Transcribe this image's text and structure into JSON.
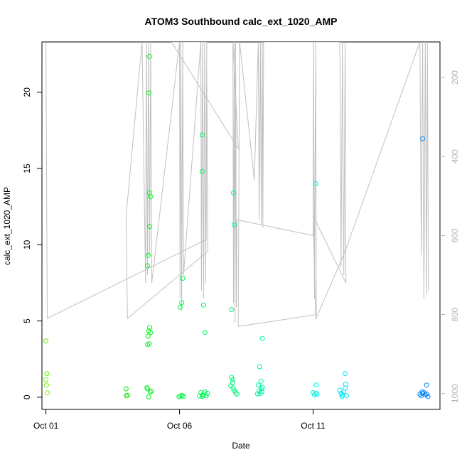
{
  "chart_data": {
    "type": "scatter",
    "title": "ATOM3 Southbound calc_ext_1020_AMP",
    "xlabel": "Date",
    "ylabel": "calc_ext_1020_AMP",
    "xlim": [
      -0.15,
      14.75
    ],
    "ylim": [
      -0.8,
      23.3
    ],
    "x_ticks": [
      {
        "value": 0,
        "label": "Oct 01"
      },
      {
        "value": 5,
        "label": "Oct 06"
      },
      {
        "value": 10,
        "label": "Oct 11"
      }
    ],
    "y_ticks": [
      0,
      5,
      10,
      15,
      20
    ],
    "right_axis": {
      "ylim": [
        1040,
        110
      ],
      "ticks": [
        200,
        400,
        600,
        800,
        1000
      ],
      "color": "#b3b3b3"
    },
    "points": [
      {
        "x": 0.0,
        "y": 3.68
      },
      {
        "x": 0.03,
        "y": 1.55
      },
      {
        "x": 0.0,
        "y": 1.15
      },
      {
        "x": 0.02,
        "y": 0.8
      },
      {
        "x": 0.05,
        "y": 0.28
      },
      {
        "x": 3.0,
        "y": 0.55
      },
      {
        "x": 3.0,
        "y": 0.1
      },
      {
        "x": 3.05,
        "y": 0.12
      },
      {
        "x": 3.78,
        "y": 0.62
      },
      {
        "x": 3.8,
        "y": 0.55
      },
      {
        "x": 3.85,
        "y": 0.02
      },
      {
        "x": 3.9,
        "y": 0.35
      },
      {
        "x": 3.95,
        "y": 0.4
      },
      {
        "x": 3.8,
        "y": 3.45
      },
      {
        "x": 3.87,
        "y": 3.5
      },
      {
        "x": 3.82,
        "y": 4.0
      },
      {
        "x": 3.85,
        "y": 4.35
      },
      {
        "x": 3.88,
        "y": 4.58
      },
      {
        "x": 3.92,
        "y": 4.25
      },
      {
        "x": 3.8,
        "y": 8.62
      },
      {
        "x": 3.83,
        "y": 9.3
      },
      {
        "x": 3.88,
        "y": 11.2
      },
      {
        "x": 3.87,
        "y": 13.4
      },
      {
        "x": 3.92,
        "y": 13.15
      },
      {
        "x": 3.85,
        "y": 19.95
      },
      {
        "x": 3.87,
        "y": 22.35
      },
      {
        "x": 5.02,
        "y": 5.9
      },
      {
        "x": 5.08,
        "y": 6.2
      },
      {
        "x": 5.12,
        "y": 7.8
      },
      {
        "x": 4.98,
        "y": 0.03
      },
      {
        "x": 5.05,
        "y": 0.08
      },
      {
        "x": 5.1,
        "y": 0.12
      },
      {
        "x": 5.15,
        "y": 0.05
      },
      {
        "x": 5.85,
        "y": 17.2
      },
      {
        "x": 5.85,
        "y": 14.8
      },
      {
        "x": 5.9,
        "y": 6.05
      },
      {
        "x": 5.95,
        "y": 4.25
      },
      {
        "x": 5.8,
        "y": 0.3
      },
      {
        "x": 5.85,
        "y": 0.05
      },
      {
        "x": 5.9,
        "y": 0.2
      },
      {
        "x": 5.95,
        "y": 0.35
      },
      {
        "x": 6.0,
        "y": 0.1
      },
      {
        "x": 6.05,
        "y": 0.25
      },
      {
        "x": 5.88,
        "y": 0.12
      },
      {
        "x": 5.75,
        "y": 0.08
      },
      {
        "x": 7.02,
        "y": 13.4
      },
      {
        "x": 7.05,
        "y": 11.3
      },
      {
        "x": 6.95,
        "y": 5.75
      },
      {
        "x": 6.95,
        "y": 1.3
      },
      {
        "x": 7.0,
        "y": 1.15
      },
      {
        "x": 6.98,
        "y": 0.95
      },
      {
        "x": 6.92,
        "y": 0.75
      },
      {
        "x": 7.0,
        "y": 0.6
      },
      {
        "x": 7.05,
        "y": 0.45
      },
      {
        "x": 7.1,
        "y": 0.3
      },
      {
        "x": 7.15,
        "y": 0.2
      },
      {
        "x": 8.1,
        "y": 3.85
      },
      {
        "x": 8.0,
        "y": 2.0
      },
      {
        "x": 8.05,
        "y": 1.05
      },
      {
        "x": 7.95,
        "y": 0.8
      },
      {
        "x": 8.05,
        "y": 0.55
      },
      {
        "x": 8.1,
        "y": 0.65
      },
      {
        "x": 7.98,
        "y": 0.4
      },
      {
        "x": 8.02,
        "y": 0.25
      },
      {
        "x": 8.08,
        "y": 0.35
      },
      {
        "x": 7.92,
        "y": 0.22
      },
      {
        "x": 10.1,
        "y": 14.0
      },
      {
        "x": 10.12,
        "y": 0.8
      },
      {
        "x": 10.0,
        "y": 0.3
      },
      {
        "x": 10.05,
        "y": 0.15
      },
      {
        "x": 10.1,
        "y": 0.25
      },
      {
        "x": 10.15,
        "y": 0.2
      },
      {
        "x": 11.0,
        "y": 0.45
      },
      {
        "x": 11.05,
        "y": 0.25
      },
      {
        "x": 11.1,
        "y": 0.15
      },
      {
        "x": 11.15,
        "y": 0.35
      },
      {
        "x": 11.2,
        "y": 0.6
      },
      {
        "x": 11.22,
        "y": 0.85
      },
      {
        "x": 11.2,
        "y": 1.55
      },
      {
        "x": 11.25,
        "y": 0.1
      },
      {
        "x": 11.08,
        "y": 0.05
      },
      {
        "x": 14.1,
        "y": 16.95
      },
      {
        "x": 14.25,
        "y": 0.8
      },
      {
        "x": 14.0,
        "y": 0.2
      },
      {
        "x": 14.05,
        "y": 0.1
      },
      {
        "x": 14.1,
        "y": 0.25
      },
      {
        "x": 14.15,
        "y": 0.3
      },
      {
        "x": 14.2,
        "y": 0.15
      },
      {
        "x": 14.25,
        "y": 0.2
      },
      {
        "x": 14.3,
        "y": 0.05
      },
      {
        "x": 14.08,
        "y": 0.35
      }
    ],
    "line_series": {
      "color": "#c0c0c0",
      "points": [
        [
          0.0,
          110
        ],
        [
          0.05,
          810
        ],
        [
          6.0,
          610
        ],
        [
          6.02,
          180
        ],
        [
          6.06,
          640
        ],
        [
          3.05,
          810
        ],
        [
          3.0,
          550
        ],
        [
          3.6,
          110
        ],
        [
          3.73,
          720
        ],
        [
          3.76,
          110
        ],
        [
          3.8,
          700
        ],
        [
          3.84,
          110
        ],
        [
          3.88,
          650
        ],
        [
          3.92,
          110
        ],
        [
          3.96,
          720
        ],
        [
          5.0,
          110
        ],
        [
          5.02,
          760
        ],
        [
          5.05,
          110
        ],
        [
          5.08,
          790
        ],
        [
          5.12,
          110
        ],
        [
          5.15,
          700
        ],
        [
          5.8,
          110
        ],
        [
          5.82,
          740
        ],
        [
          5.86,
          110
        ],
        [
          5.9,
          760
        ],
        [
          5.94,
          110
        ],
        [
          5.98,
          720
        ],
        [
          6.02,
          110
        ],
        [
          4.7,
          110
        ],
        [
          7.2,
          380
        ],
        [
          7.0,
          110
        ],
        [
          7.02,
          770
        ],
        [
          7.05,
          110
        ],
        [
          7.08,
          820
        ],
        [
          7.1,
          110
        ],
        [
          7.13,
          780
        ],
        [
          7.15,
          560
        ],
        [
          10.0,
          600
        ],
        [
          10.02,
          110
        ],
        [
          10.05,
          760
        ],
        [
          10.1,
          110
        ],
        [
          10.12,
          800
        ],
        [
          7.2,
          830
        ],
        [
          7.25,
          110
        ],
        [
          7.8,
          460
        ],
        [
          7.95,
          110
        ],
        [
          7.98,
          560
        ],
        [
          8.03,
          110
        ],
        [
          8.06,
          570
        ],
        [
          8.1,
          110
        ],
        [
          8.12,
          580
        ],
        [
          8.15,
          110
        ],
        [
          11.0,
          110
        ],
        [
          11.05,
          680
        ],
        [
          11.1,
          110
        ],
        [
          11.15,
          700
        ],
        [
          11.2,
          110
        ],
        [
          11.23,
          720
        ],
        [
          10.0,
          550
        ],
        [
          10.1,
          812
        ],
        [
          11.2,
          640
        ],
        [
          14.0,
          110
        ],
        [
          14.05,
          650
        ],
        [
          14.1,
          110
        ],
        [
          14.15,
          760
        ],
        [
          14.2,
          110
        ],
        [
          14.25,
          750
        ],
        [
          14.28,
          110
        ],
        [
          14.32,
          740
        ]
      ]
    }
  }
}
